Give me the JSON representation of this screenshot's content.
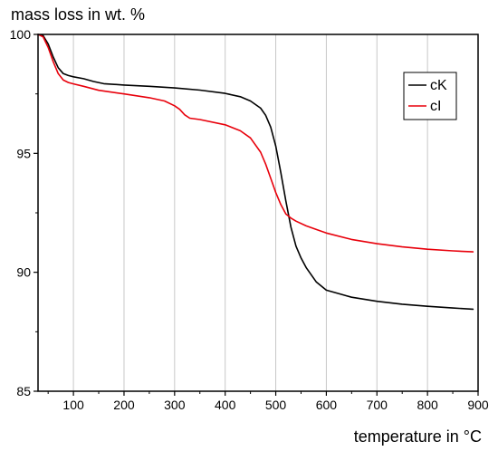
{
  "chart_data": {
    "type": "line",
    "title": "",
    "ylabel": "mass loss in wt. %",
    "xlabel": "temperature in °C",
    "xlim": [
      30,
      900
    ],
    "ylim": [
      85,
      100
    ],
    "xticks": [
      100,
      200,
      300,
      400,
      500,
      600,
      700,
      800,
      900
    ],
    "yticks": [
      85,
      90,
      95,
      100
    ],
    "xtick_labels": [
      "100",
      "200",
      "300",
      "400",
      "500",
      "600",
      "700",
      "800",
      "900"
    ],
    "ytick_labels": [
      "85",
      "90",
      "95",
      "100"
    ],
    "grid": "vertical",
    "legend_position": "top-right",
    "series": [
      {
        "name": "cK",
        "color": "#000000",
        "x": [
          30,
          40,
          50,
          60,
          70,
          80,
          90,
          100,
          120,
          140,
          160,
          200,
          250,
          300,
          350,
          400,
          430,
          450,
          470,
          480,
          490,
          500,
          510,
          520,
          530,
          540,
          550,
          560,
          580,
          600,
          650,
          700,
          750,
          800,
          850,
          890
        ],
        "y": [
          100,
          99.95,
          99.6,
          99.05,
          98.6,
          98.35,
          98.27,
          98.22,
          98.14,
          98.02,
          97.93,
          97.87,
          97.82,
          97.75,
          97.66,
          97.52,
          97.38,
          97.2,
          96.9,
          96.6,
          96.1,
          95.3,
          94.2,
          93.0,
          91.9,
          91.1,
          90.6,
          90.2,
          89.6,
          89.25,
          88.95,
          88.78,
          88.66,
          88.57,
          88.5,
          88.45
        ]
      },
      {
        "name": "cI",
        "color": "#e8000b",
        "x": [
          30,
          40,
          50,
          60,
          70,
          80,
          90,
          100,
          120,
          150,
          200,
          250,
          280,
          300,
          310,
          320,
          330,
          350,
          400,
          430,
          450,
          470,
          480,
          490,
          500,
          510,
          520,
          530,
          540,
          560,
          600,
          650,
          700,
          750,
          800,
          850,
          890
        ],
        "y": [
          100,
          99.9,
          99.45,
          98.85,
          98.35,
          98.08,
          97.98,
          97.92,
          97.82,
          97.65,
          97.5,
          97.34,
          97.2,
          97.0,
          96.85,
          96.62,
          96.48,
          96.42,
          96.2,
          95.95,
          95.65,
          95.05,
          94.55,
          93.95,
          93.35,
          92.85,
          92.45,
          92.28,
          92.15,
          91.95,
          91.65,
          91.38,
          91.2,
          91.07,
          90.97,
          90.9,
          90.86
        ]
      }
    ]
  }
}
